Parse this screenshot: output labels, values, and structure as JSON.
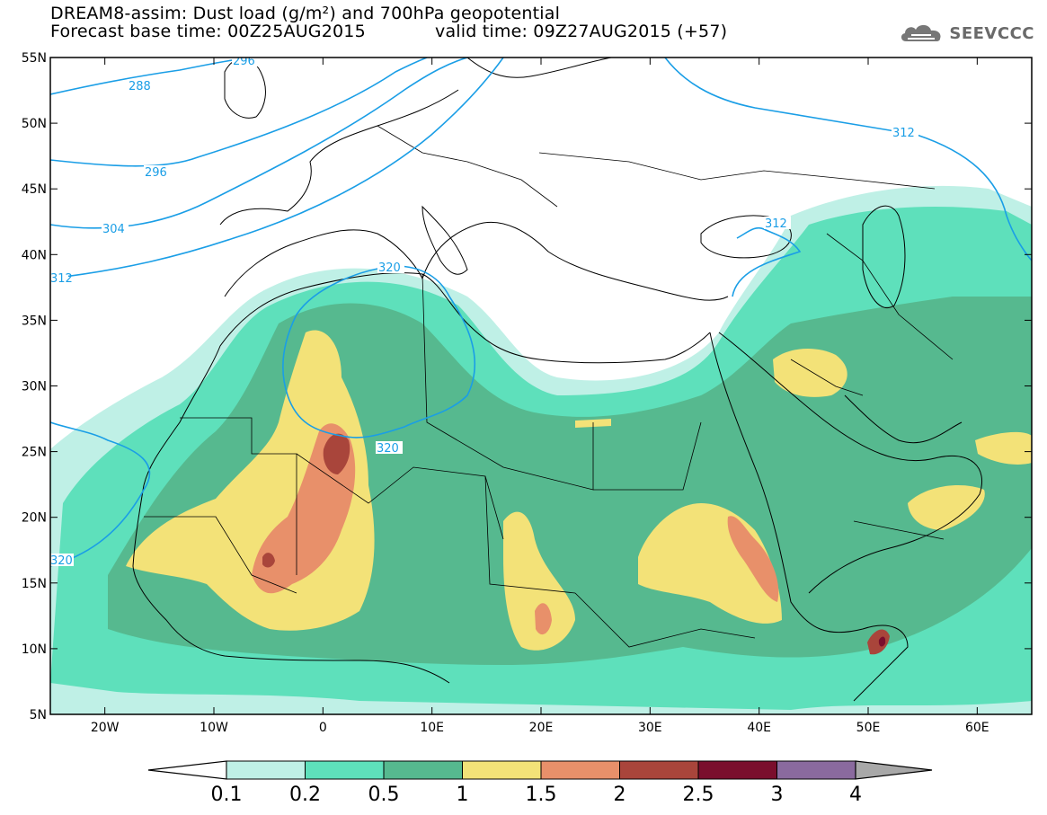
{
  "header": {
    "title_line1": "DREAM8-assim: Dust load (g/m²) and 700hPa geopotential",
    "title_line2": "Forecast base time: 00Z25AUG2015",
    "valid_time": "valid time: 09Z27AUG2015 (+57)",
    "logo_text": "SEEVCCC"
  },
  "map": {
    "lat_labels": [
      "55N",
      "50N",
      "45N",
      "40N",
      "35N",
      "30N",
      "25N",
      "20N",
      "15N",
      "10N",
      "5N"
    ],
    "lon_labels": [
      "20W",
      "10W",
      "0",
      "10E",
      "20E",
      "30E",
      "40E",
      "50E",
      "60E"
    ],
    "lat_values": [
      55,
      50,
      45,
      40,
      35,
      30,
      25,
      20,
      15,
      10,
      5
    ],
    "lon_values": [
      -20,
      -10,
      0,
      10,
      20,
      30,
      40,
      50,
      60
    ],
    "extent": {
      "lon_min": -25,
      "lon_max": 65,
      "lat_min": 5,
      "lat_max": 55
    },
    "contour_labels": [
      "288",
      "296",
      "304",
      "312",
      "320",
      "320",
      "320",
      "312",
      "312",
      "296"
    ]
  },
  "colorbar": {
    "ticks": [
      "0.1",
      "0.2",
      "0.5",
      "1",
      "1.5",
      "2",
      "2.5",
      "3",
      "4"
    ],
    "colors": [
      "#bff0e6",
      "#5ee0bb",
      "#56b98f",
      "#f3e278",
      "#e8906a",
      "#a9453b",
      "#7a0e2d",
      "#8a6a9e",
      "#a8a8a8"
    ]
  },
  "colors": {
    "contour": "#1a9ee6",
    "land_outline": "#000000"
  }
}
